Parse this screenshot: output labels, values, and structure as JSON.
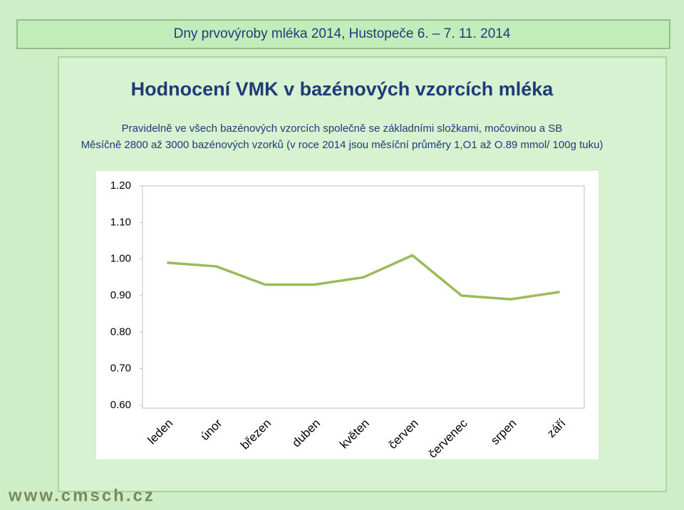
{
  "header": {
    "banner": "Dny prvovýroby mléka 2014, Hustopeče  6. – 7. 11. 2014"
  },
  "footer": {
    "url": "www.cmsch.cz"
  },
  "chart_data": {
    "type": "line",
    "title": "Hodnocení VMK v bazénových vzorcích mléka",
    "subtitle": [
      "Pravidelně ve všech bazénových vzorcích společně se základními složkami, močovinou a SB",
      "Měsíčně 2800 až 3000 bazénových vzorků (v roce 2014 jsou měsíční průměry 1,O1 až O.89 mmol/ 100g tuku)"
    ],
    "categories": [
      "leden",
      "únor",
      "březen",
      "duben",
      "květen",
      "červen",
      "červenec",
      "srpen",
      "září"
    ],
    "values": [
      0.99,
      0.98,
      0.93,
      0.93,
      0.95,
      1.01,
      0.9,
      0.89,
      0.91
    ],
    "color": "#9bbb59",
    "ylim": [
      0.6,
      1.2
    ],
    "yticks": [
      {
        "value": 0.6,
        "label": "0.60"
      },
      {
        "value": 0.7,
        "label": "0.70"
      },
      {
        "value": 0.8,
        "label": "0.80"
      },
      {
        "value": 0.9,
        "label": "0.90"
      },
      {
        "value": 1.0,
        "label": "1.00"
      },
      {
        "value": 1.1,
        "label": "1.10"
      },
      {
        "value": 1.2,
        "label": "1.20"
      }
    ],
    "grid": false
  }
}
